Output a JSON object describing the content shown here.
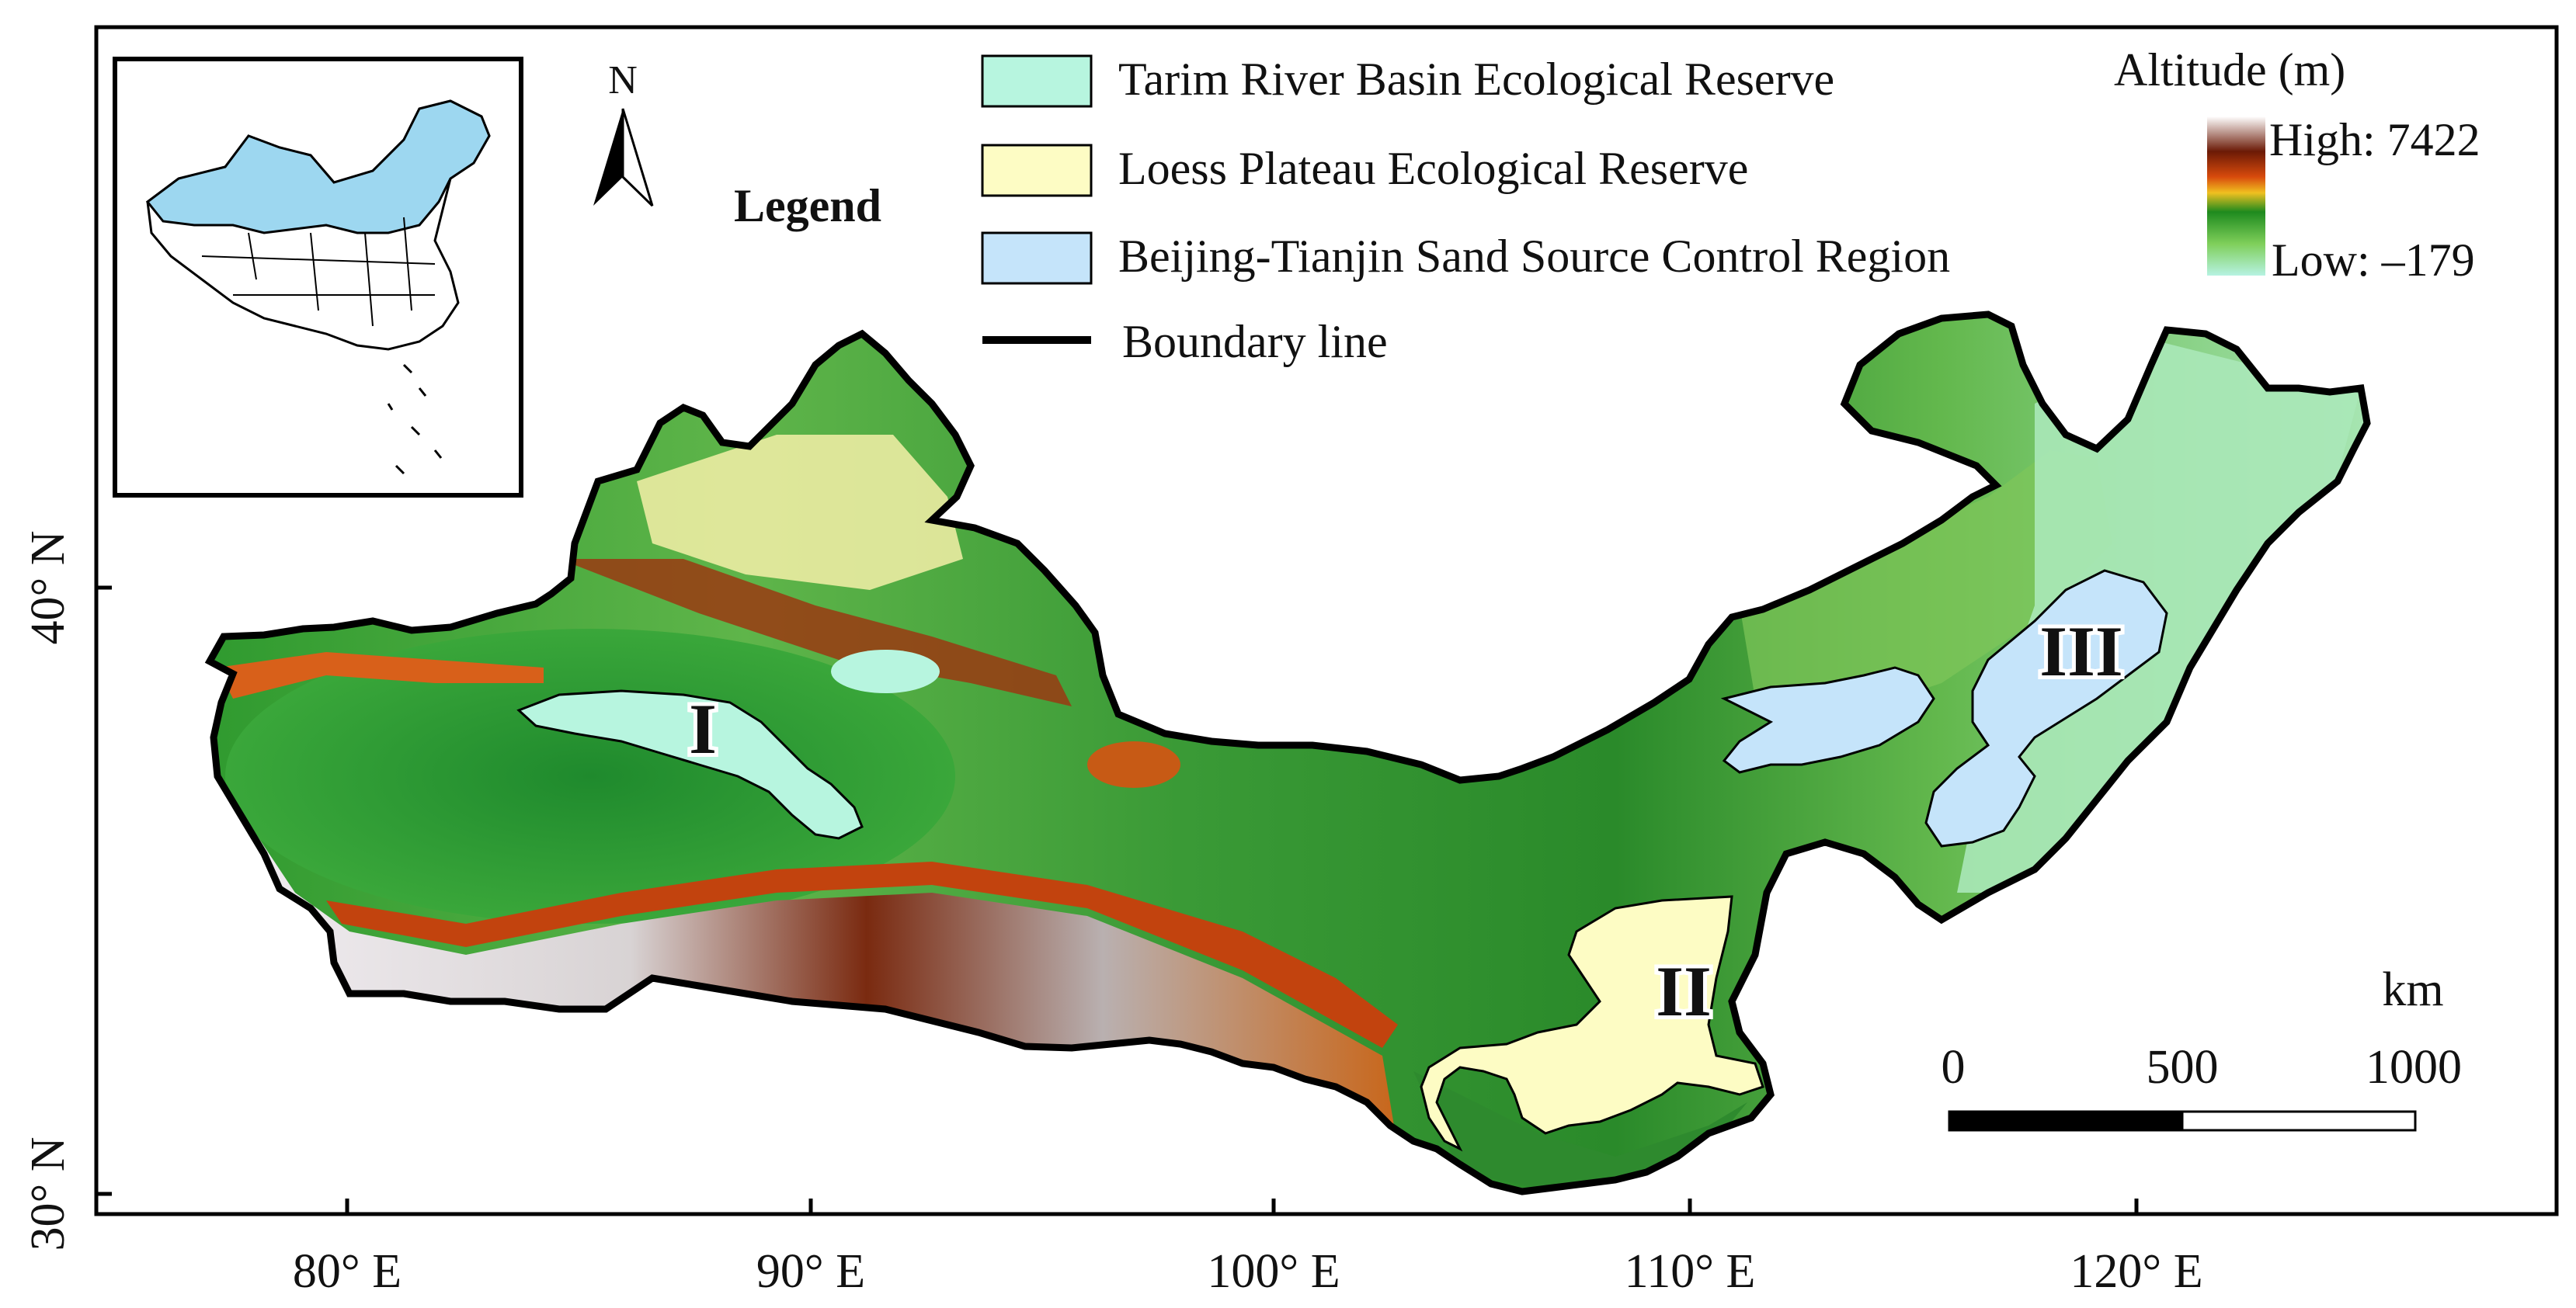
{
  "colors": {
    "tarim": "#b7f5df",
    "loess": "#fdfcc4",
    "beijing": "#c5e4fa",
    "boundary": "#000000",
    "inset_highlight": "#9dd7f0",
    "altitude_high": "#ffffff",
    "altitude_mid_brown": "#6b1a06",
    "altitude_orange": "#e06a10",
    "altitude_green": "#1e8a1e",
    "altitude_low": "#b6f2e2"
  },
  "north_arrow": {
    "label": "N",
    "icon": "north-arrow-icon"
  },
  "legend": {
    "title": "Legend",
    "items": [
      {
        "label": "Tarim River Basin Ecological Reserve",
        "color": "#b7f5df",
        "icon": "tarim-swatch"
      },
      {
        "label": "Loess Plateau Ecological Reserve",
        "color": "#fdfcc4",
        "icon": "loess-swatch"
      },
      {
        "label": "Beijing-Tianjin Sand Source Control Region",
        "color": "#c5e4fa",
        "icon": "beijing-swatch"
      },
      {
        "label": "Boundary line",
        "color": "#000000",
        "icon": "boundary-line"
      }
    ]
  },
  "altitude": {
    "title": "Altitude (m)",
    "high_label": "High: 7422",
    "low_label": "Low: –179",
    "high_value": 7422,
    "low_value": -179
  },
  "zones": {
    "zone_1": "I",
    "zone_2": "II",
    "zone_3": "III"
  },
  "axes": {
    "x_ticks": [
      "80° E",
      "90° E",
      "100° E",
      "110° E",
      "120° E"
    ],
    "y_ticks": [
      "40° N",
      "30° N"
    ]
  },
  "scale_bar": {
    "unit": "km",
    "labels": [
      "0",
      "500",
      "1000"
    ]
  }
}
